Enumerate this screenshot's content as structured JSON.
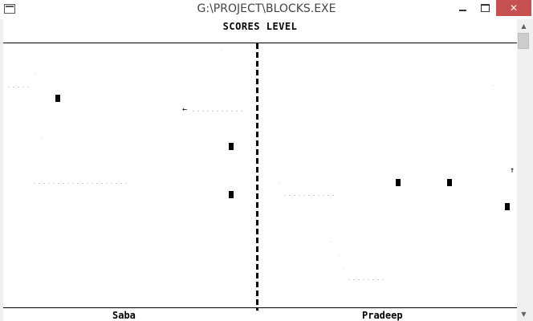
{
  "window": {
    "title": "G:\\PROJECT\\BLOCKS.EXE",
    "minimize_glyph": "",
    "close_glyph": "✕"
  },
  "game": {
    "header": "SCORES LEVEL",
    "players": {
      "left": "Saba",
      "right": "Pradeep"
    },
    "arrows": {
      "left_arrow": "←",
      "up_arrow": "↑"
    }
  },
  "scrollbar": {
    "up_glyph": "▲",
    "down_glyph": "▼"
  }
}
